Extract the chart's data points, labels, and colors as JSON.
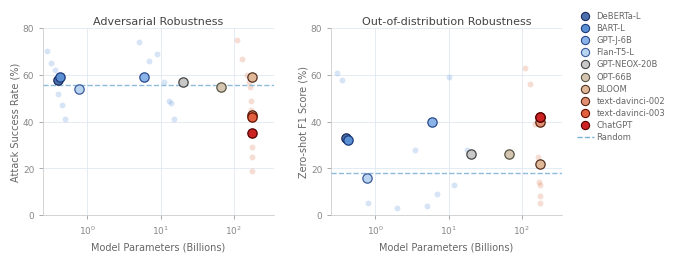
{
  "adv_title": "Adversarial Robustness",
  "ood_title": "Out-of-distribution Robustness",
  "adv_ylabel": "Attack Success Rate (%)",
  "ood_ylabel": "Zero-shot F1 Score (%)",
  "xlabel": "Model Parameters (Billions)",
  "adv_ylim": [
    0,
    80
  ],
  "ood_ylim": [
    0,
    80
  ],
  "adv_random_line": 55.5,
  "ood_random_line": 18,
  "background_color": "#ffffff",
  "grid_color": "#e0e8f0",
  "random_line_color": "#7ab0d4",
  "models": [
    {
      "name": "DeBERTa-L",
      "params": 0.4,
      "adv": 58,
      "ood": 33,
      "face": "#4c6fae",
      "edge": "#1a2a5a",
      "size": 45
    },
    {
      "name": "BART-L",
      "params": 0.42,
      "adv": 59,
      "ood": 32,
      "face": "#5b8fd4",
      "edge": "#1a3a7a",
      "size": 45
    },
    {
      "name": "GPT-J-6B",
      "params": 6.0,
      "adv": 59,
      "ood": 40,
      "face": "#8ab4e8",
      "edge": "#2a4a8a",
      "size": 45
    },
    {
      "name": "Flan-T5-L",
      "params": 0.78,
      "adv": 54,
      "ood": 16,
      "face": "#b8d4f0",
      "edge": "#3a5a9a",
      "size": 45
    },
    {
      "name": "GPT-NEOX-20B",
      "params": 20.0,
      "adv": 57,
      "ood": 26,
      "face": "#c8c8c8",
      "edge": "#444444",
      "size": 45
    },
    {
      "name": "OPT-66B",
      "params": 66.0,
      "adv": 55,
      "ood": 26,
      "face": "#d4c4b0",
      "edge": "#555544",
      "size": 45
    },
    {
      "name": "BLOOM",
      "params": 176.0,
      "adv": 59,
      "ood": 22,
      "face": "#e0b898",
      "edge": "#553322",
      "size": 45
    },
    {
      "name": "text-davinci-002",
      "params": 175.0,
      "adv": 43,
      "ood": 40,
      "face": "#e09070",
      "edge": "#552211",
      "size": 45
    },
    {
      "name": "text-davinci-003",
      "params": 175.0,
      "adv": 42,
      "ood": 42,
      "face": "#e06040",
      "edge": "#661100",
      "size": 45
    },
    {
      "name": "ChatGPT",
      "params": 175.0,
      "adv": 35,
      "ood": 42,
      "face": "#cc2222",
      "edge": "#550000",
      "size": 45
    }
  ],
  "adv_bg_blue": [
    {
      "params": 0.28,
      "value": 70
    },
    {
      "params": 0.32,
      "value": 65
    },
    {
      "params": 0.36,
      "value": 62
    },
    {
      "params": 0.4,
      "value": 52
    },
    {
      "params": 0.45,
      "value": 47
    },
    {
      "params": 0.5,
      "value": 41
    },
    {
      "params": 5.0,
      "value": 74
    },
    {
      "params": 7.0,
      "value": 66
    },
    {
      "params": 9.0,
      "value": 69
    },
    {
      "params": 11.0,
      "value": 57
    },
    {
      "params": 13.0,
      "value": 49
    },
    {
      "params": 14.0,
      "value": 48
    },
    {
      "params": 15.0,
      "value": 41
    }
  ],
  "adv_bg_red": [
    {
      "params": 110.0,
      "value": 75
    },
    {
      "params": 130.0,
      "value": 67
    },
    {
      "params": 150.0,
      "value": 60
    },
    {
      "params": 160.0,
      "value": 57
    },
    {
      "params": 165.0,
      "value": 55
    },
    {
      "params": 170.0,
      "value": 49
    },
    {
      "params": 172.0,
      "value": 45
    },
    {
      "params": 174.0,
      "value": 43
    },
    {
      "params": 175.0,
      "value": 42
    },
    {
      "params": 176.0,
      "value": 41
    },
    {
      "params": 177.0,
      "value": 29
    },
    {
      "params": 178.0,
      "value": 25
    },
    {
      "params": 179.0,
      "value": 19
    }
  ],
  "ood_bg_blue": [
    {
      "params": 0.3,
      "value": 61
    },
    {
      "params": 0.35,
      "value": 58
    },
    {
      "params": 0.8,
      "value": 5
    },
    {
      "params": 2.0,
      "value": 3
    },
    {
      "params": 3.5,
      "value": 28
    },
    {
      "params": 5.0,
      "value": 4
    },
    {
      "params": 7.0,
      "value": 9
    },
    {
      "params": 10.0,
      "value": 59
    },
    {
      "params": 12.0,
      "value": 13
    },
    {
      "params": 18.0,
      "value": 28
    }
  ],
  "ood_bg_red": [
    {
      "params": 110.0,
      "value": 63
    },
    {
      "params": 130.0,
      "value": 56
    },
    {
      "params": 150.0,
      "value": 39
    },
    {
      "params": 165.0,
      "value": 25
    },
    {
      "params": 170.0,
      "value": 14
    },
    {
      "params": 175.0,
      "value": 13
    },
    {
      "params": 176.0,
      "value": 8
    },
    {
      "params": 177.0,
      "value": 5
    }
  ],
  "legend_models": [
    {
      "name": "DeBERTa-L",
      "face": "#4c6fae",
      "edge": "#1a2a5a"
    },
    {
      "name": "BART-L",
      "face": "#5b8fd4",
      "edge": "#1a3a7a"
    },
    {
      "name": "GPT-J-6B",
      "face": "#8ab4e8",
      "edge": "#2a4a8a"
    },
    {
      "name": "Flan-T5-L",
      "face": "#b8d4f0",
      "edge": "#3a5a9a"
    },
    {
      "name": "GPT-NEOX-20B",
      "face": "#c8c8c8",
      "edge": "#444444"
    },
    {
      "name": "OPT-66B",
      "face": "#d4c4b0",
      "edge": "#555544"
    },
    {
      "name": "BLOOM",
      "face": "#e0b898",
      "edge": "#553322"
    },
    {
      "name": "text-davinci-002",
      "face": "#e09070",
      "edge": "#552211"
    },
    {
      "name": "text-davinci-003",
      "face": "#e06040",
      "edge": "#661100"
    },
    {
      "name": "ChatGPT",
      "face": "#cc2222",
      "edge": "#550000"
    }
  ]
}
